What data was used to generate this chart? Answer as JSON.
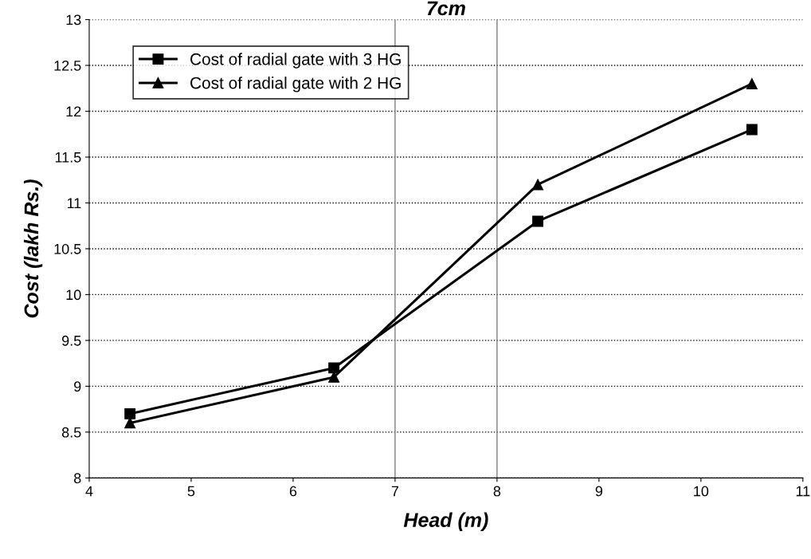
{
  "chart_data": {
    "type": "line",
    "title": "7cm",
    "xlabel": "Head (m)",
    "ylabel": "Cost (lakh Rs.)",
    "xlim": [
      4,
      11
    ],
    "xticks": [
      4,
      5,
      6,
      7,
      8,
      9,
      10,
      11
    ],
    "ylim": [
      8,
      13
    ],
    "yticks": [
      8,
      {
        "value": 8.5,
        "label": "8.5"
      },
      9,
      {
        "value": 9.5,
        "label": "9.5"
      },
      10,
      {
        "value": 10.5,
        "label": "10.5"
      },
      11,
      {
        "value": 11.5,
        "label": "11.5"
      },
      12,
      {
        "value": 12.5,
        "label": "12.5"
      },
      13
    ],
    "grid": "y",
    "legend": "top left",
    "line_style": "solid",
    "ref_lines": [
      {
        "axis": "x",
        "value": 7,
        "color": "#808080"
      },
      {
        "axis": "x",
        "value": 8,
        "color": "#808080"
      }
    ],
    "series": [
      {
        "name": "Cost of radial gate with 3 HG",
        "color": "#000000",
        "marker": "square",
        "x": [
          4.4,
          6.4,
          8.4,
          10.5
        ],
        "values": [
          8.7,
          9.2,
          10.8,
          11.8
        ]
      },
      {
        "name": "Cost of radial gate with 2 HG",
        "color": "#000000",
        "marker": "triangle",
        "x": [
          4.4,
          6.4,
          8.4,
          10.5
        ],
        "values": [
          8.6,
          9.1,
          11.2,
          12.3
        ]
      }
    ]
  }
}
